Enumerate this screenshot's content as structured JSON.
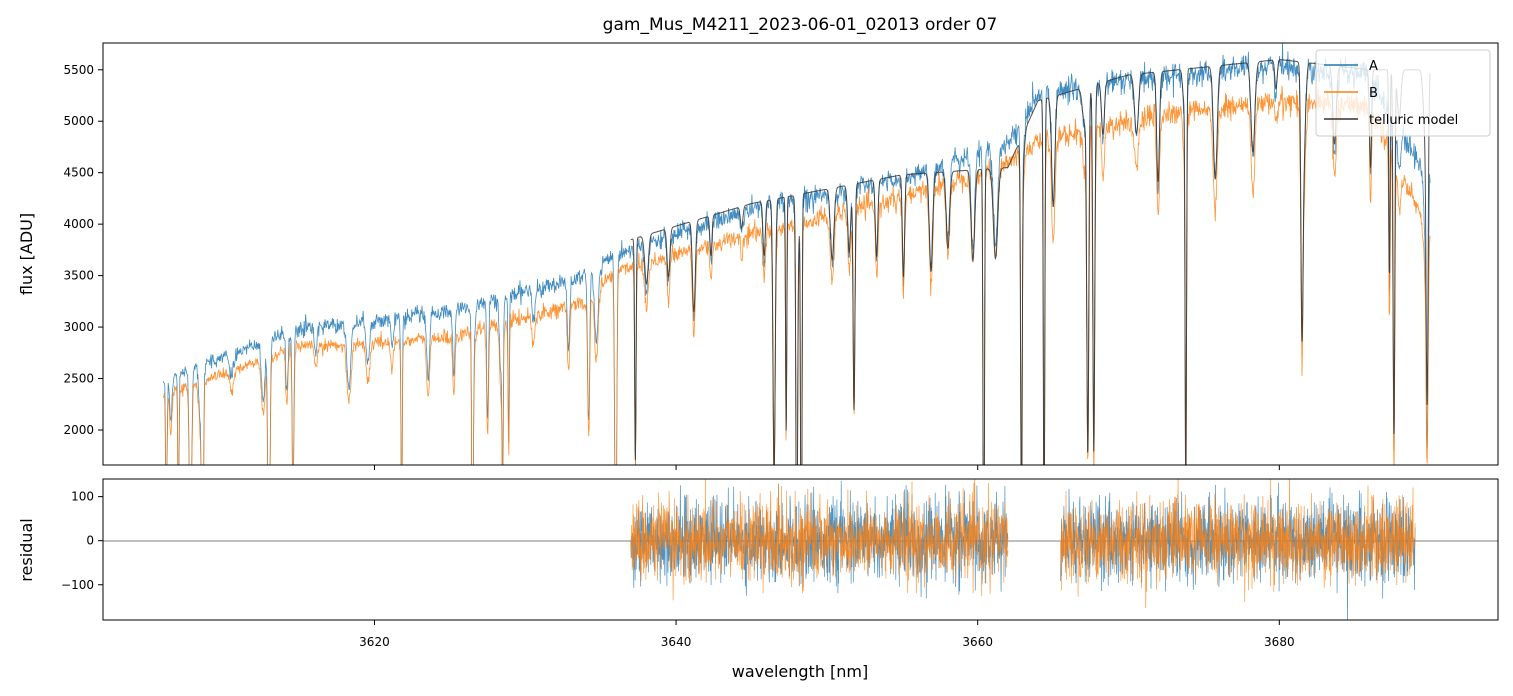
{
  "chart_data": [
    {
      "type": "line",
      "title": "gam_Mus_M4211_2023-06-01_02013  order 07",
      "xlabel": "",
      "ylabel": "flux [ADU]",
      "xlim": [
        3602,
        3694.5
      ],
      "ylim": [
        1660,
        5760
      ],
      "x_ticks": [
        3620,
        3640,
        3660,
        3680
      ],
      "y_ticks": [
        2000,
        2500,
        3000,
        3500,
        4000,
        4500,
        5000,
        5500
      ],
      "y_tick_labels": [
        "2000",
        "2500",
        "3000",
        "3500",
        "4000",
        "4500",
        "5000",
        "5500"
      ],
      "legend_position": "top-right",
      "series": [
        {
          "name": "A",
          "color": "#1f77b4",
          "x_range": [
            3606,
            3690
          ],
          "approx_continuum": [
            [
              3606,
              2500
            ],
            [
              3615,
              2980
            ],
            [
              3625,
              3150
            ],
            [
              3634,
              3500
            ],
            [
              3636,
              3700
            ],
            [
              3645,
              4150
            ],
            [
              3655,
              4450
            ],
            [
              3662,
              4780
            ],
            [
              3664,
              5250
            ],
            [
              3670,
              5400
            ],
            [
              3680,
              5550
            ],
            [
              3686,
              5450
            ],
            [
              3690,
              4400
            ]
          ]
        },
        {
          "name": "B",
          "color": "#ff7f0e",
          "x_range": [
            3606,
            3690
          ],
          "approx_continuum": [
            [
              3606,
              2350
            ],
            [
              3615,
              2800
            ],
            [
              3625,
              2900
            ],
            [
              3634,
              3250
            ],
            [
              3636,
              3550
            ],
            [
              3645,
              3900
            ],
            [
              3655,
              4250
            ],
            [
              3662,
              4600
            ],
            [
              3664,
              4800
            ],
            [
              3670,
              5000
            ],
            [
              3680,
              5200
            ],
            [
              3686,
              5150
            ],
            [
              3690,
              3900
            ]
          ]
        },
        {
          "name": "telluric model",
          "color": "#333333",
          "x_range": [
            3637,
            3690
          ],
          "approx_continuum": [
            [
              3637,
              3850
            ],
            [
              3645,
              4200
            ],
            [
              3655,
              4480
            ],
            [
              3662,
              4550
            ],
            [
              3664,
              5200
            ],
            [
              3670,
              5450
            ],
            [
              3680,
              5600
            ],
            [
              3686,
              5500
            ]
          ]
        }
      ]
    },
    {
      "type": "line",
      "title": "",
      "xlabel": "wavelength [nm]",
      "ylabel": "residual",
      "xlim": [
        3602,
        3694.5
      ],
      "ylim": [
        -180,
        140
      ],
      "x_ticks": [
        3620,
        3640,
        3660,
        3680
      ],
      "x_tick_labels": [
        "3620",
        "3640",
        "3660",
        "3680"
      ],
      "y_ticks": [
        -100,
        0,
        100
      ],
      "y_tick_labels": [
        "−100",
        "0",
        "100"
      ],
      "zero_line": true,
      "series": [
        {
          "name": "A",
          "color": "#1f77b4",
          "segments": [
            [
              3637,
              3662
            ],
            [
              3665.5,
              3689
            ]
          ],
          "noise_std": 45
        },
        {
          "name": "B",
          "color": "#ff7f0e",
          "segments": [
            [
              3637,
              3662
            ],
            [
              3665.5,
              3689
            ]
          ],
          "noise_std": 45
        }
      ]
    }
  ]
}
